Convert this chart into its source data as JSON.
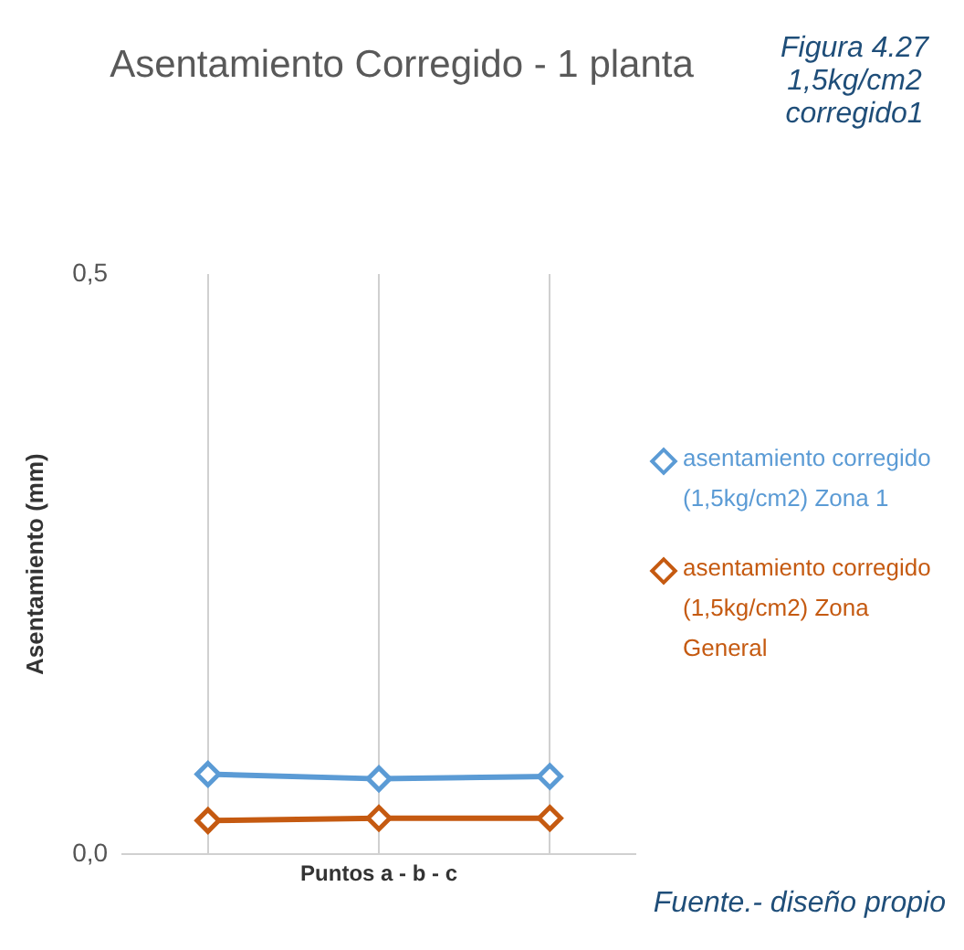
{
  "chart_data": {
    "type": "line",
    "title": "Asentamiento Corregido - 1 planta",
    "xlabel": "Puntos a - b - c",
    "ylabel": "Asentamiento (mm)",
    "annotations": [
      "Figura 4.27 1,5kg/cm2 corregido1",
      "Fuente.- diseño propio"
    ],
    "categories": [
      null,
      null,
      null
    ],
    "series": [
      {
        "name": "asentamiento corregido (1,5kg/cm2) Zona 1",
        "color": "#5b9bd5",
        "values": [
          0.069,
          0.065,
          0.067
        ]
      },
      {
        "name": "asentamiento corregido (1,5kg/cm2) Zona General",
        "color": "#c55a11",
        "values": [
          0.029,
          0.031,
          0.031
        ]
      }
    ],
    "ylim": [
      0,
      0.5
    ],
    "yticks": [
      {
        "value": 0,
        "label": "0,0"
      },
      {
        "value": 0.5,
        "label": "0,5"
      }
    ],
    "grid": "x",
    "legend": "right",
    "marker": "diamond",
    "line_style": "solid"
  }
}
